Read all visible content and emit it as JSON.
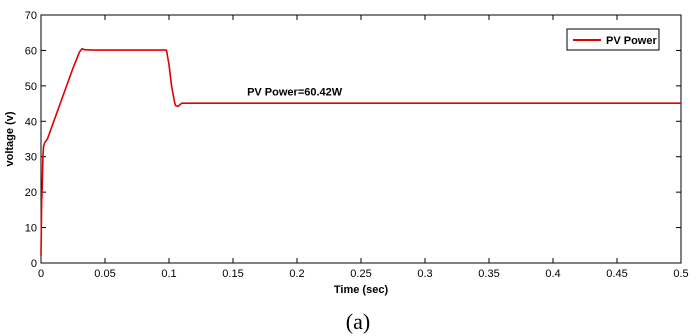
{
  "chart_data": {
    "type": "line",
    "title": "",
    "xlabel": "Time (sec)",
    "ylabel": "voltage (v)",
    "xlim": [
      0,
      0.5
    ],
    "ylim": [
      0,
      70
    ],
    "x_ticks": [
      0,
      0.05,
      0.1,
      0.15,
      0.2,
      0.25,
      0.3,
      0.35,
      0.4,
      0.45,
      0.5
    ],
    "x_tick_labels": [
      "0",
      "0.05",
      "0.1",
      "0.15",
      "0.2",
      "0.25",
      "0.3",
      "0.35",
      "0.4",
      "0.45",
      "0.5"
    ],
    "y_ticks": [
      0,
      10,
      20,
      30,
      40,
      50,
      60,
      70
    ],
    "y_tick_labels": [
      "0",
      "10",
      "20",
      "30",
      "40",
      "50",
      "60",
      "70"
    ],
    "grid": false,
    "legend_position": "top-right",
    "series": [
      {
        "name": "PV Power",
        "color": "#e00000",
        "x": [
          0,
          0.0005,
          0.001,
          0.0015,
          0.002,
          0.003,
          0.005,
          0.008,
          0.012,
          0.016,
          0.02,
          0.025,
          0.03,
          0.032,
          0.034,
          0.04,
          0.06,
          0.08,
          0.098,
          0.1,
          0.102,
          0.104,
          0.105,
          0.107,
          0.11,
          0.13,
          0.2,
          0.3,
          0.4,
          0.5
        ],
        "y": [
          2,
          17,
          22,
          30,
          33,
          34,
          35,
          38,
          42,
          46,
          50,
          55,
          59.5,
          60.5,
          60.2,
          60.1,
          60.1,
          60.1,
          60.1,
          56,
          50,
          46,
          44.5,
          44.2,
          45.1,
          45.1,
          45.1,
          45.1,
          45.1,
          45.1
        ]
      }
    ],
    "annotations": [
      {
        "text": "PV Power=60.42W",
        "x": 0.161,
        "y": 47.3
      }
    ]
  },
  "caption": "(a)"
}
